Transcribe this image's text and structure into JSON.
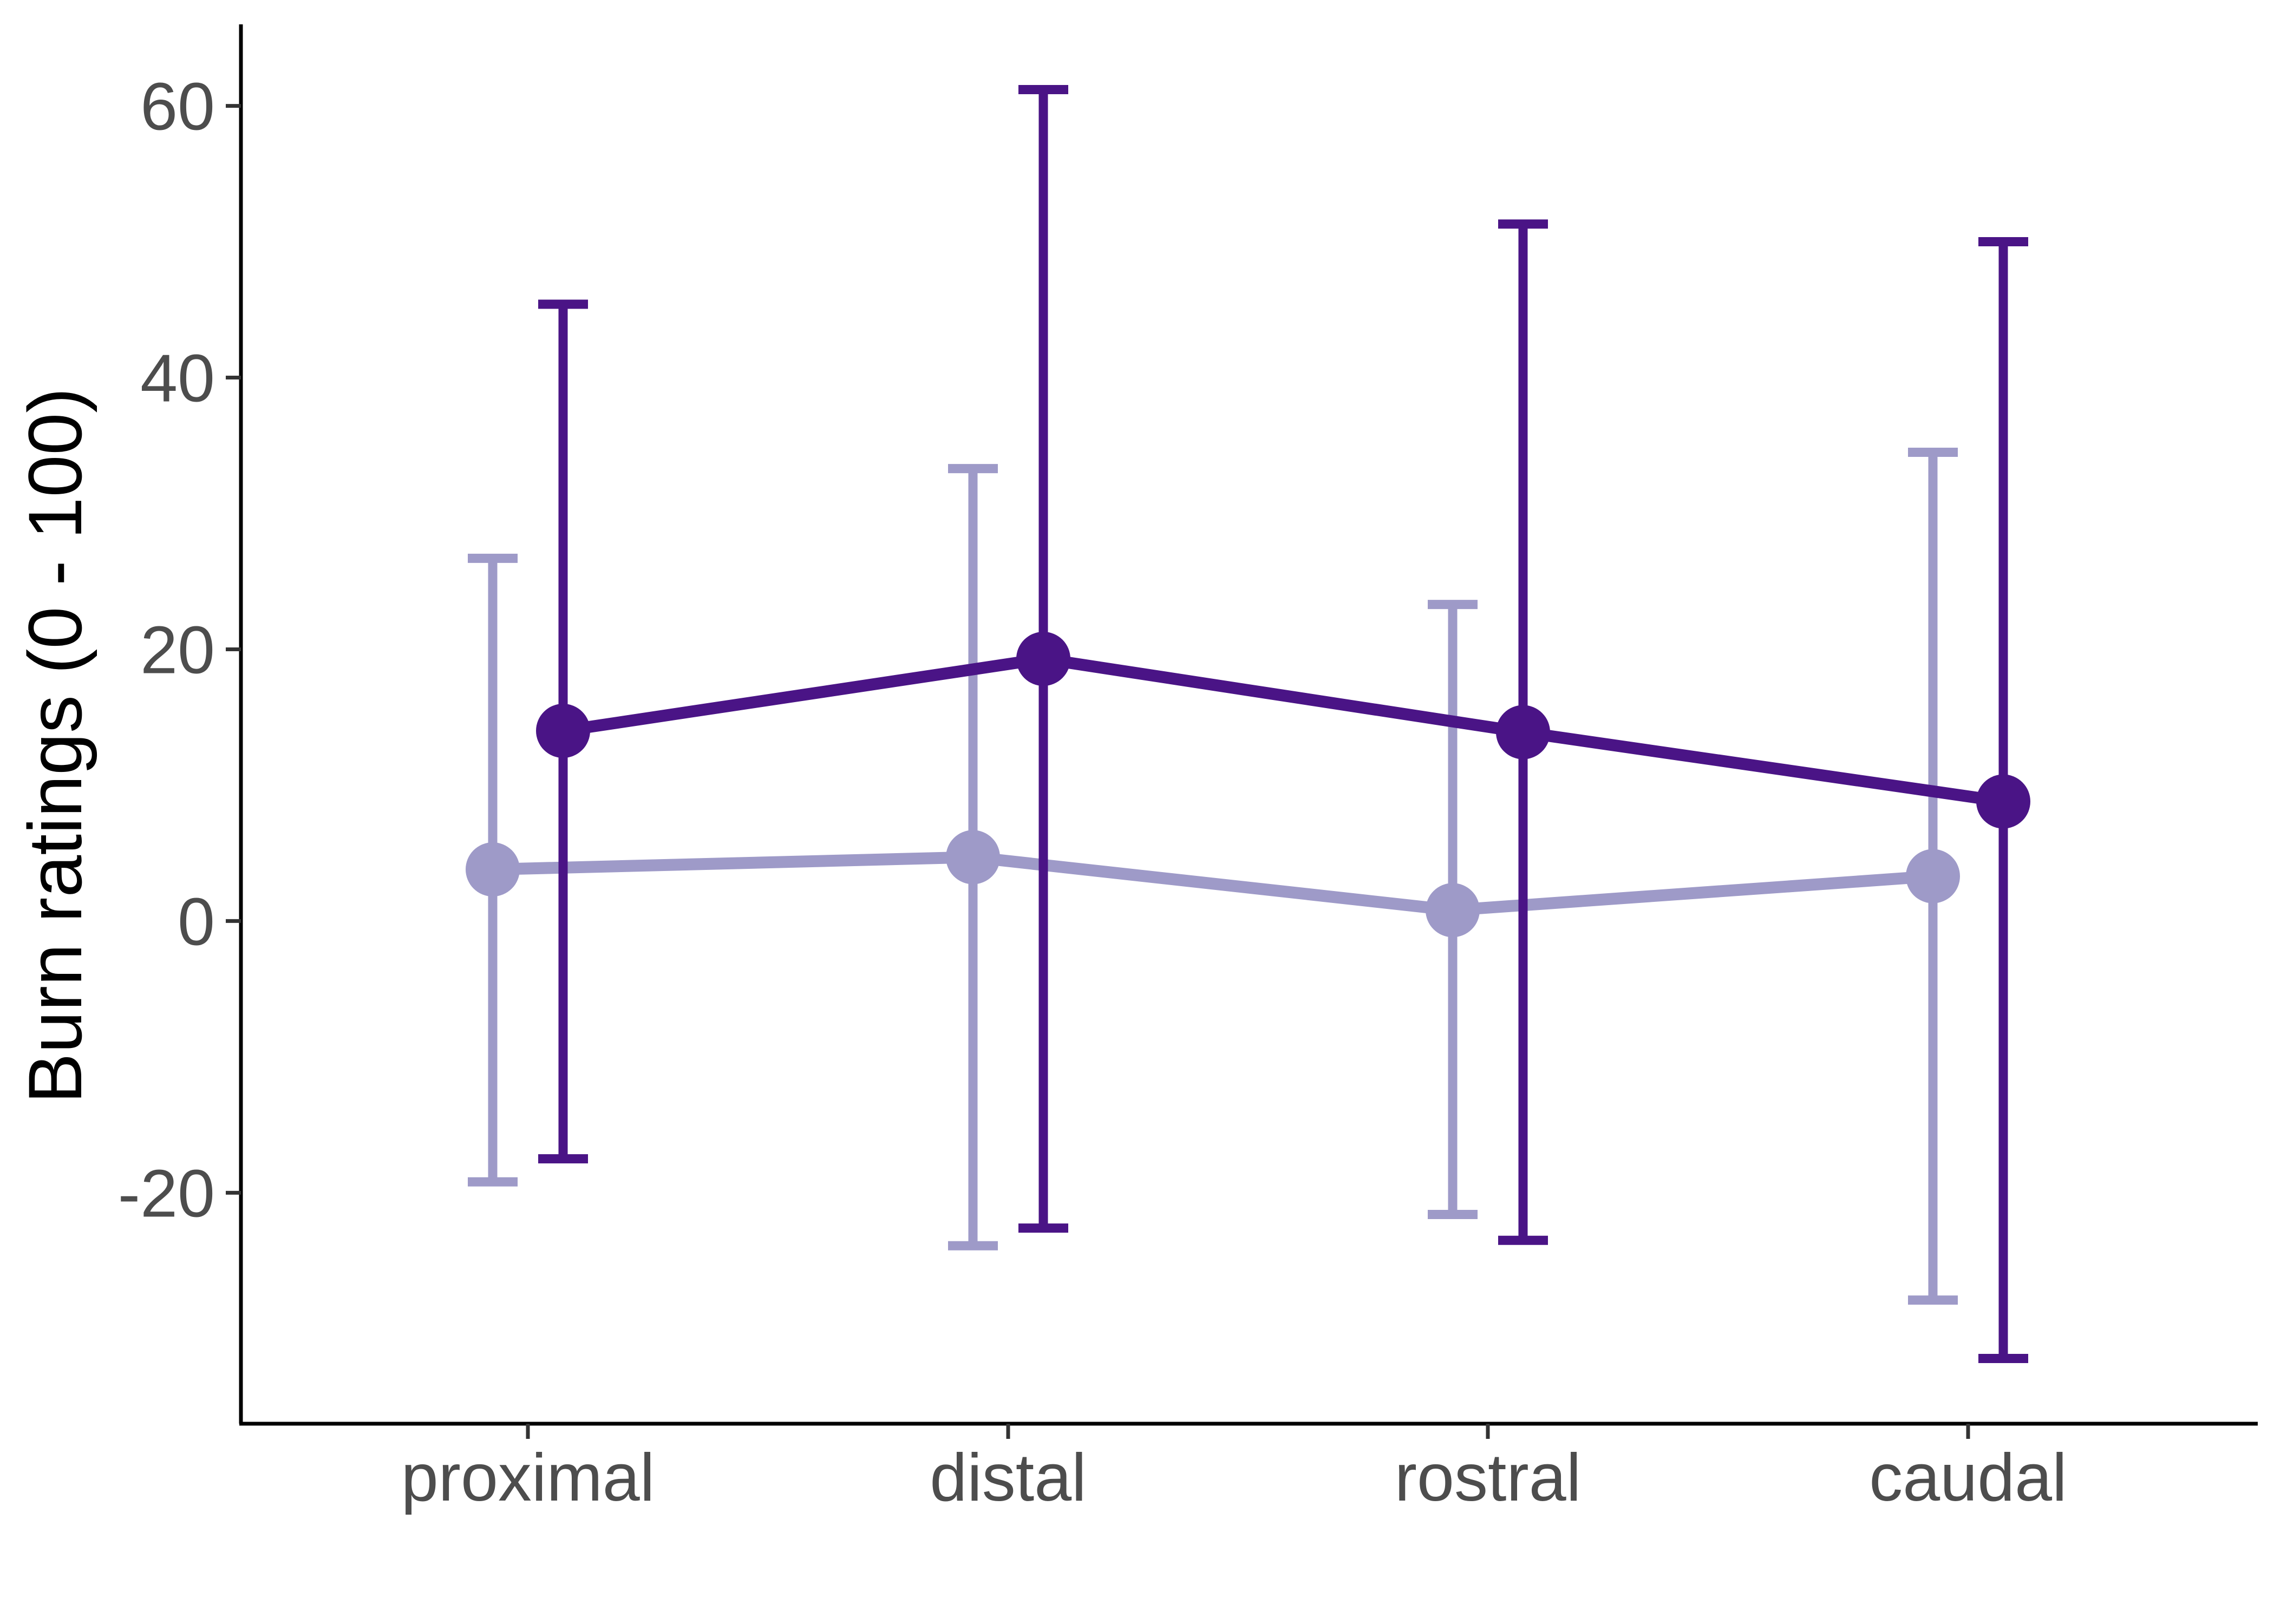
{
  "chart_data": {
    "type": "line",
    "title": "",
    "xlabel": "",
    "ylabel": "Burn ratings (0 - 100)",
    "categories": [
      "proximal",
      "distal",
      "rostral",
      "caudal"
    ],
    "ylim": [
      -37,
      66
    ],
    "yticks": [
      -20,
      0,
      20,
      40,
      60
    ],
    "ytick_labels": [
      "-20",
      "0",
      "20",
      "40",
      "60"
    ],
    "grid": false,
    "legend": "none",
    "series": [
      {
        "color": "#9e9ac8",
        "offset": "left",
        "values": [
          3.8,
          4.7,
          0.8,
          3.3
        ],
        "error_low": [
          -19.2,
          -23.9,
          -21.6,
          -27.9
        ],
        "error_high": [
          26.7,
          33.3,
          23.3,
          34.5
        ]
      },
      {
        "color": "#4a1486",
        "offset": "right",
        "values": [
          14.0,
          19.3,
          13.9,
          8.8
        ],
        "error_low": [
          -17.5,
          -22.6,
          -23.5,
          -32.2
        ],
        "error_high": [
          45.4,
          61.2,
          51.3,
          50.0
        ]
      }
    ]
  }
}
